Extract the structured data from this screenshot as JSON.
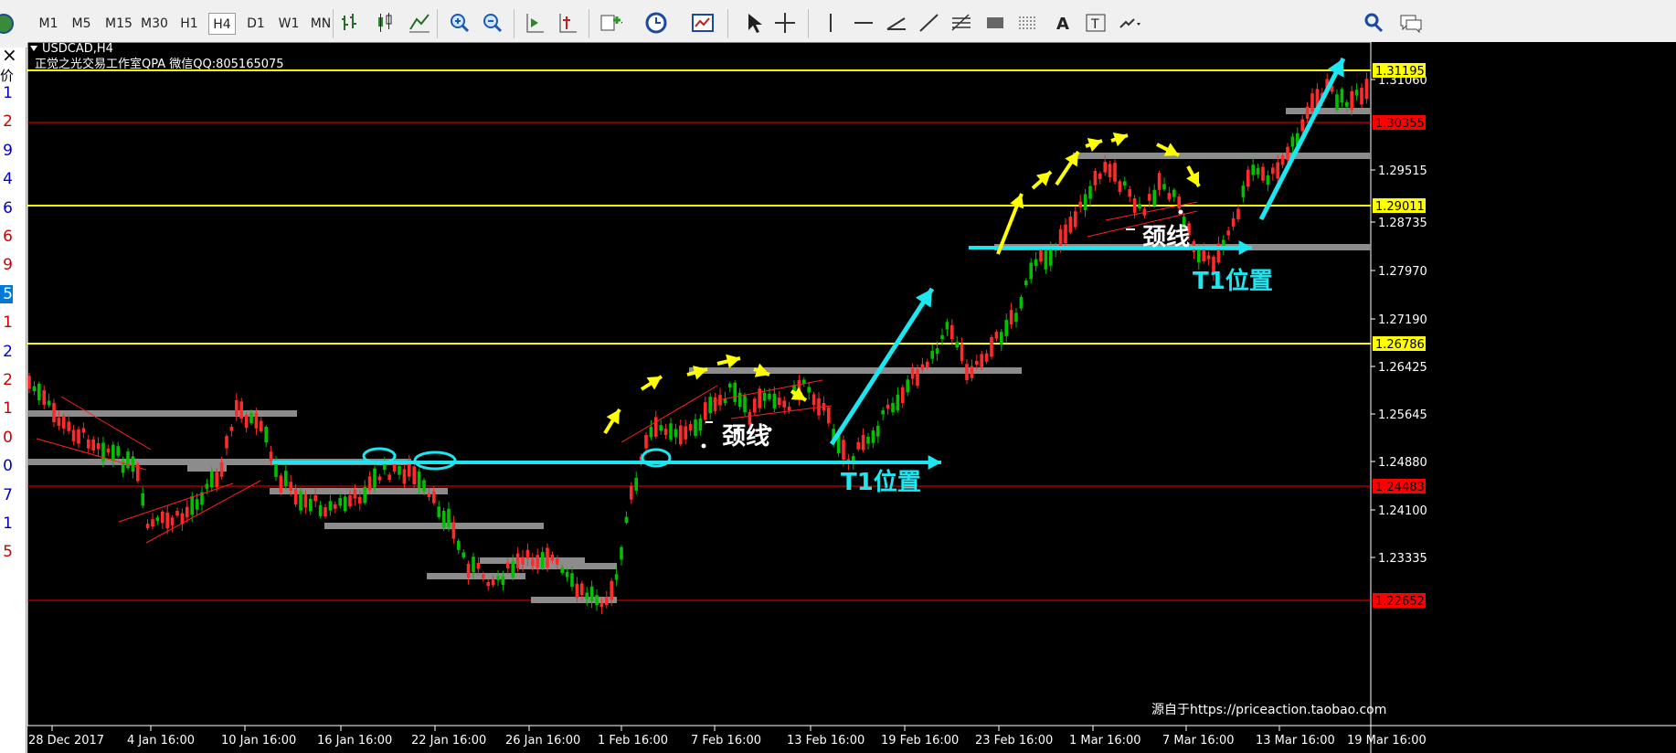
{
  "toolbar": {
    "timeframes": [
      "M1",
      "M5",
      "M15",
      "M30",
      "H1",
      "H4",
      "D1",
      "W1",
      "MN"
    ],
    "active_timeframe": "H4",
    "tools": [
      "bar-chart-icon",
      "candlestick-icon",
      "line-chart-icon",
      "zoom-in-icon",
      "zoom-out-icon",
      "chart-shift-icon",
      "autoscroll-icon",
      "new-order-icon",
      "history-clock-icon",
      "templates-icon",
      "cursor-icon",
      "crosshair-icon",
      "vertical-line-icon",
      "horizontal-line-icon",
      "angle-icon",
      "trendline-icon",
      "fibonacci-icon",
      "rectangle-icon",
      "fibo-fan-icon",
      "text-icon",
      "text-label-icon",
      "arrows-icon",
      "search-icon",
      "chat-icon"
    ]
  },
  "sidebar": {
    "close_label": "×",
    "header": "价",
    "digits": [
      {
        "d": "1",
        "color": "#0000cc"
      },
      {
        "d": "2",
        "color": "#cc0000"
      },
      {
        "d": "9",
        "color": "#0000cc"
      },
      {
        "d": "4",
        "color": "#0000cc"
      },
      {
        "d": "6",
        "color": "#0000cc"
      },
      {
        "d": "6",
        "color": "#cc0000"
      },
      {
        "d": "9",
        "color": "#cc0000"
      },
      {
        "d": "5",
        "color": "#ffffff",
        "bg": "#0078d7"
      },
      {
        "d": "1",
        "color": "#cc0000"
      },
      {
        "d": "2",
        "color": "#0000cc"
      },
      {
        "d": "2",
        "color": "#cc0000"
      },
      {
        "d": "1",
        "color": "#cc0000"
      },
      {
        "d": "0",
        "color": "#cc0000"
      },
      {
        "d": "0",
        "color": "#0000cc"
      },
      {
        "d": "7",
        "color": "#0000cc"
      },
      {
        "d": "1",
        "color": "#0000cc"
      },
      {
        "d": "5",
        "color": "#cc0000"
      }
    ]
  },
  "chart": {
    "symbol": "USDCAD,H4",
    "subtitle": "正觉之光交易工作室QPA 微信QQ:805165075",
    "watermark": "源自于https://priceaction.taobao.com",
    "price_ticks": [
      "1.31060",
      "1.29515",
      "1.28735",
      "1.27970",
      "1.27190",
      "1.26425",
      "1.25645",
      "1.24880",
      "1.24100",
      "1.23335"
    ],
    "levels": [
      {
        "label": "1.31195",
        "line": "#ffff00",
        "box": "#ffff00",
        "text": "#000000"
      },
      {
        "label": "1.30355",
        "line": "#ff0000",
        "box": "#ff0000",
        "text": "#000000"
      },
      {
        "label": "1.29011",
        "line": "#ffff00",
        "box": "#ffff00",
        "text": "#000000"
      },
      {
        "label": "1.26786",
        "line": "#ffff00",
        "box": "#ffff00",
        "text": "#000000"
      },
      {
        "label": "1.24483",
        "line": "#ff0000",
        "box": "#ff0000",
        "text": "#000000"
      },
      {
        "label": "1.22652",
        "line": "#ff0000",
        "box": "#ff0000",
        "text": "#000000"
      }
    ],
    "date_ticks": [
      "28 Dec 2017",
      "4 Jan 16:00",
      "10 Jan 16:00",
      "16 Jan 16:00",
      "22 Jan 16:00",
      "26 Jan 16:00",
      "1 Feb 16:00",
      "7 Feb 16:00",
      "13 Feb 16:00",
      "19 Feb 16:00",
      "23 Feb 16:00",
      "1 Mar 16:00",
      "7 Mar 16:00",
      "13 Mar 16:00",
      "19 Mar 16:00"
    ],
    "annotations": {
      "neckline_1": "颈线",
      "neckline_2": "颈线",
      "t1_label_1": "T1位置",
      "t1_label_2": "T1位置"
    },
    "colors": {
      "bull": "#00c000",
      "bear": "#ff2a2a",
      "grid": "#ffffff",
      "cyan": "#1ee6f0",
      "yellow": "#ffff00",
      "zone": "#8c8c8c"
    }
  }
}
